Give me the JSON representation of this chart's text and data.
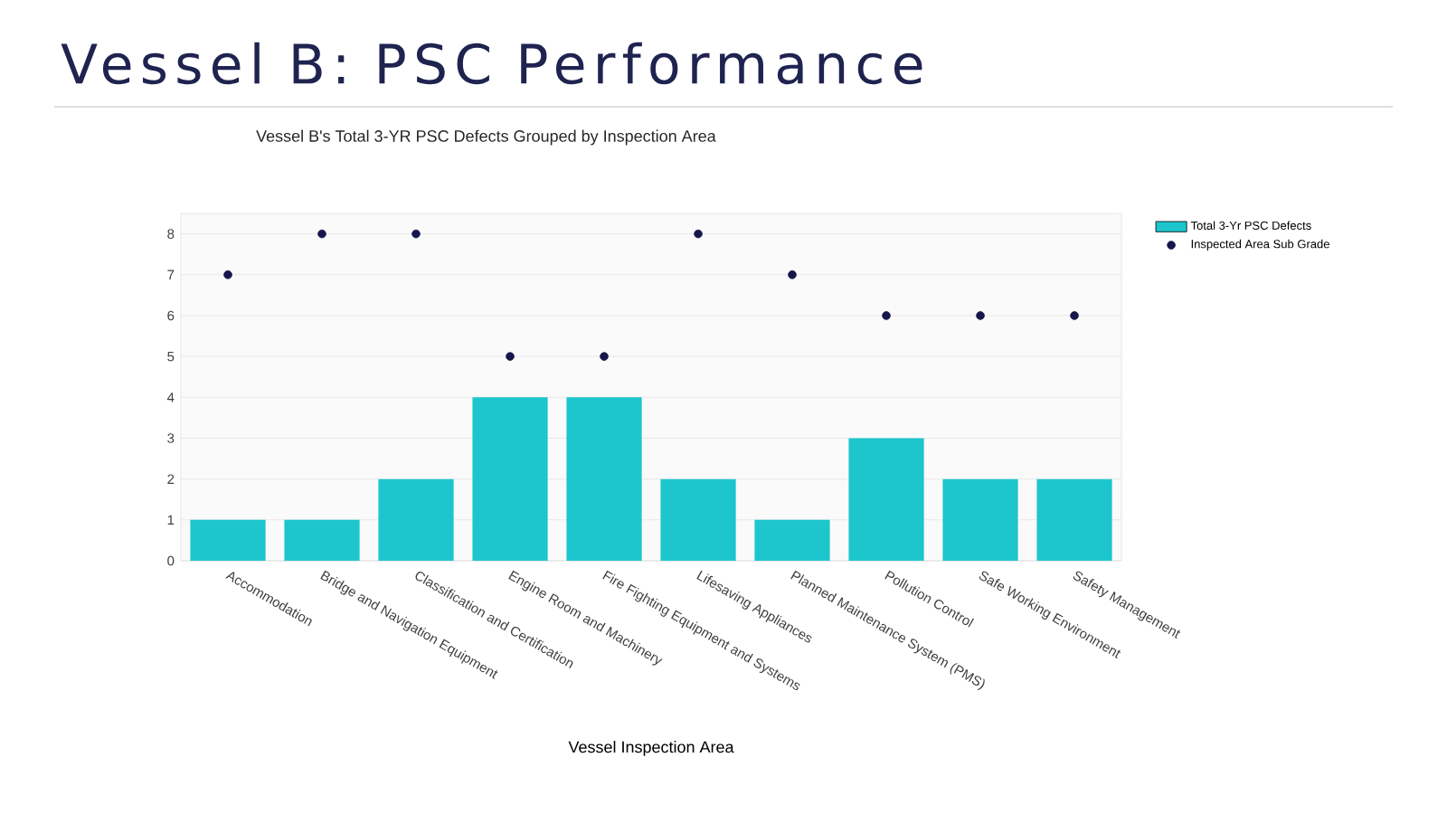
{
  "chart_data": {
    "type": "bar",
    "title": "Vessel B: PSC Performance",
    "subtitle": "Vessel B's Total 3-YR PSC Defects Grouped by Inspection Area",
    "xlabel": "Vessel Inspection Area",
    "categories": [
      "Accommodation",
      "Bridge and Navigation Equipment",
      "Classification and Certification",
      "Engine Room and Machinery",
      "Fire Fighting Equipment and Systems",
      "Lifesaving Appliances",
      "Planned Maintenance System (PMS)",
      "Pollution Control",
      "Safe Working Environment",
      "Safety Management"
    ],
    "series": [
      {
        "name": "Total 3-Yr PSC Defects",
        "color": "#1cc6cc",
        "values": [
          1,
          1,
          2,
          4,
          4,
          2,
          1,
          3,
          2,
          2
        ]
      },
      {
        "name": "Inspected Area Sub Grade",
        "type": "scatter",
        "color": "#15164a",
        "values": [
          7,
          8,
          8,
          5,
          5,
          8,
          7,
          6,
          6,
          6
        ]
      }
    ],
    "ylim": [
      0,
      8.5
    ],
    "yticks": [
      0,
      1,
      2,
      3,
      4,
      5,
      6,
      7,
      8
    ],
    "grid": "y",
    "legend": "top right"
  }
}
